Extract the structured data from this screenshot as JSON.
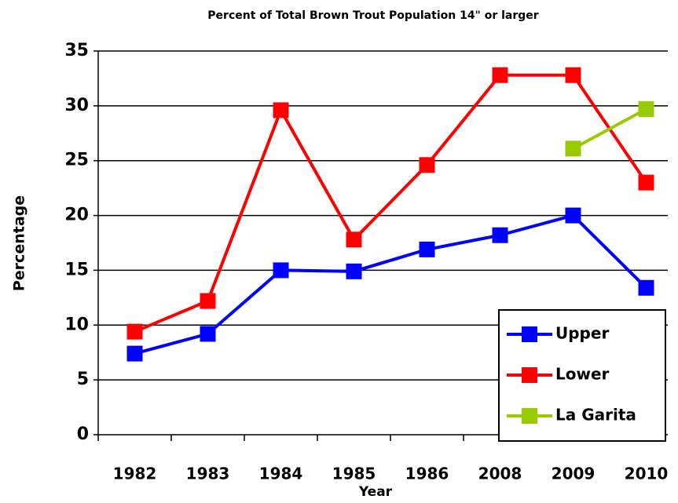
{
  "chart_data": {
    "type": "line",
    "title": "Percent of Total Brown Trout Population 14\" or larger",
    "x_label": "Year",
    "y_label": "Percentage",
    "categories": [
      "1982",
      "1983",
      "1984",
      "1985",
      "1986",
      "2008",
      "2009",
      "2010"
    ],
    "series": [
      {
        "name": "Upper",
        "color": "#0000ff",
        "values": [
          7.4,
          9.2,
          15.0,
          14.9,
          16.9,
          18.2,
          20.0,
          13.4
        ]
      },
      {
        "name": "Lower",
        "color": "#ff0000",
        "values": [
          9.4,
          12.2,
          29.6,
          17.8,
          24.6,
          32.8,
          32.8,
          23.0
        ]
      },
      {
        "name": "La Garita",
        "color": "#99cc00",
        "values": [
          null,
          null,
          null,
          null,
          null,
          null,
          26.1,
          29.7
        ]
      }
    ],
    "ylim": [
      0,
      35
    ],
    "yticks": [
      0,
      5,
      10,
      15,
      20,
      25,
      30,
      35
    ],
    "grid": true,
    "legend": "bottom-right"
  }
}
